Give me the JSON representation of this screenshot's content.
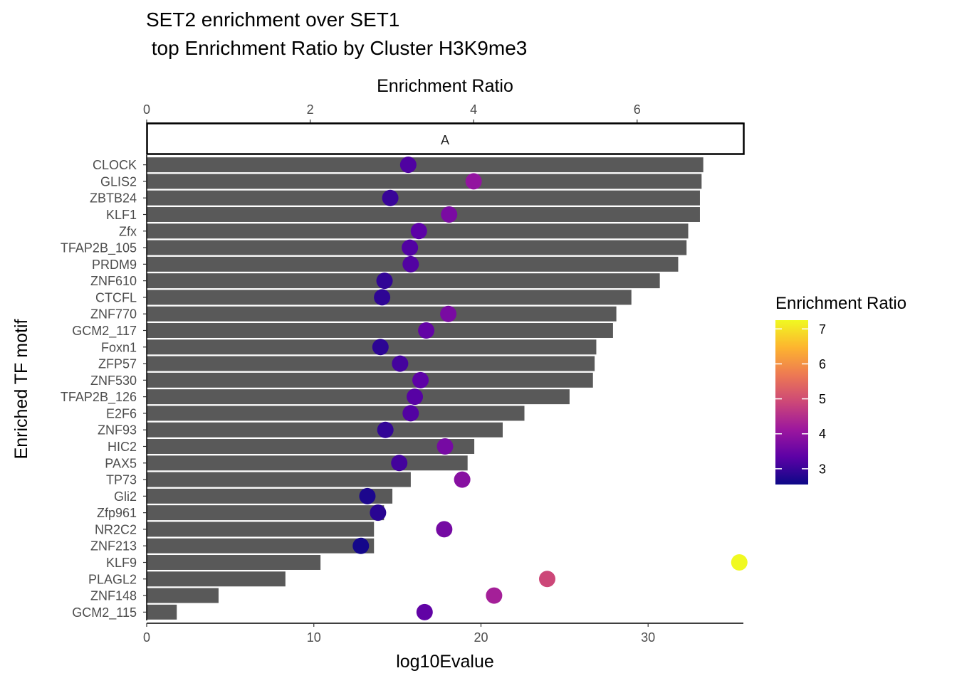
{
  "chart_data": {
    "type": "bar",
    "title_line1": "SET2 enrichment over SET1",
    "title_line2": " top Enrichment Ratio by Cluster H3K9me3",
    "facet_label": "A",
    "xlabel": "log10Evalue",
    "ylabel": "Enriched TF motif",
    "x_bottom": {
      "lim": [
        0,
        35.7
      ],
      "ticks": [
        0,
        10,
        20,
        30
      ]
    },
    "x_top": {
      "label": "Enrichment Ratio",
      "lim": [
        0,
        7.3
      ],
      "ticks": [
        0,
        2,
        4,
        6
      ]
    },
    "categories": [
      "CLOCK",
      "GLIS2",
      "ZBTB24",
      "KLF1",
      "Zfx",
      "TFAP2B_105",
      "PRDM9",
      "ZNF610",
      "CTCFL",
      "ZNF770",
      "GCM2_117",
      "Foxn1",
      "ZFP57",
      "ZNF530",
      "TFAP2B_126",
      "E2F6",
      "ZNF93",
      "HIC2",
      "PAX5",
      "TP73",
      "Gli2",
      "Zfp961",
      "NR2C2",
      "ZNF213",
      "KLF9",
      "PLAGL2",
      "ZNF148",
      "GCM2_115"
    ],
    "series": [
      {
        "name": "log10Evalue",
        "values": [
          33.3,
          33.2,
          33.1,
          33.1,
          32.4,
          32.3,
          31.8,
          30.7,
          29.0,
          28.1,
          27.9,
          26.9,
          26.8,
          26.7,
          25.3,
          22.6,
          21.3,
          19.6,
          19.2,
          15.8,
          14.7,
          14.2,
          13.6,
          13.6,
          10.4,
          8.3,
          4.3,
          1.8
        ]
      },
      {
        "name": "Enrichment Ratio",
        "values": [
          3.2,
          4.0,
          2.98,
          3.7,
          3.33,
          3.22,
          3.23,
          2.91,
          2.88,
          3.69,
          3.42,
          2.86,
          3.1,
          3.35,
          3.28,
          3.23,
          2.92,
          3.65,
          3.09,
          3.86,
          2.7,
          2.83,
          3.64,
          2.62,
          7.25,
          4.9,
          4.25,
          3.4
        ]
      }
    ],
    "legend": {
      "title": "Enrichment Ratio",
      "range": [
        2.55,
        7.25
      ],
      "ticks": [
        3,
        4,
        5,
        6,
        7
      ],
      "placement": "right"
    },
    "colors": {
      "bar": "#595959",
      "strip_border": "#000000",
      "palette": [
        "#0d0887",
        "#5c01a6",
        "#9c179e",
        "#cc4778",
        "#ed7953",
        "#fdb42f",
        "#f0f921"
      ]
    }
  }
}
